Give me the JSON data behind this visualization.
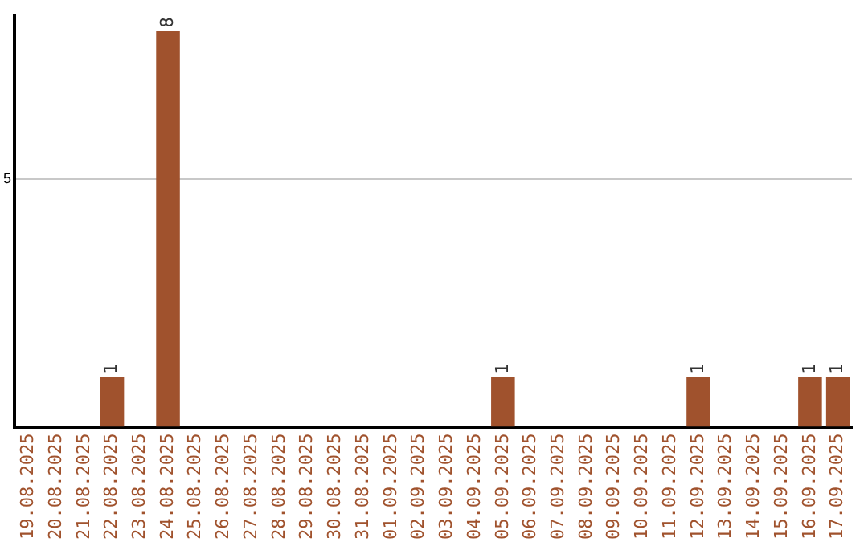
{
  "chart_data": {
    "type": "bar",
    "categories": [
      "19.08.2025",
      "20.08.2025",
      "21.08.2025",
      "22.08.2025",
      "23.08.2025",
      "24.08.2025",
      "25.08.2025",
      "26.08.2025",
      "27.08.2025",
      "28.08.2025",
      "29.08.2025",
      "30.08.2025",
      "31.08.2025",
      "01.09.2025",
      "02.09.2025",
      "03.09.2025",
      "04.09.2025",
      "05.09.2025",
      "06.09.2025",
      "07.09.2025",
      "08.09.2025",
      "09.09.2025",
      "10.09.2025",
      "11.09.2025",
      "12.09.2025",
      "13.09.2025",
      "14.09.2025",
      "15.09.2025",
      "16.09.2025",
      "17.09.2025"
    ],
    "values": [
      0,
      0,
      0,
      1,
      0,
      8,
      0,
      0,
      0,
      0,
      0,
      0,
      0,
      0,
      0,
      0,
      0,
      1,
      0,
      0,
      0,
      0,
      0,
      0,
      1,
      0,
      0,
      0,
      1,
      1
    ],
    "value_labels": [
      null,
      null,
      null,
      "1",
      null,
      "8",
      null,
      null,
      null,
      null,
      null,
      null,
      null,
      null,
      null,
      null,
      null,
      "1",
      null,
      null,
      null,
      null,
      null,
      null,
      "1",
      null,
      null,
      null,
      "1",
      "1"
    ],
    "color": "#a0522d",
    "ylim": [
      0,
      8.3
    ],
    "yticks": [
      5
    ],
    "grid": "y",
    "legend": false
  }
}
